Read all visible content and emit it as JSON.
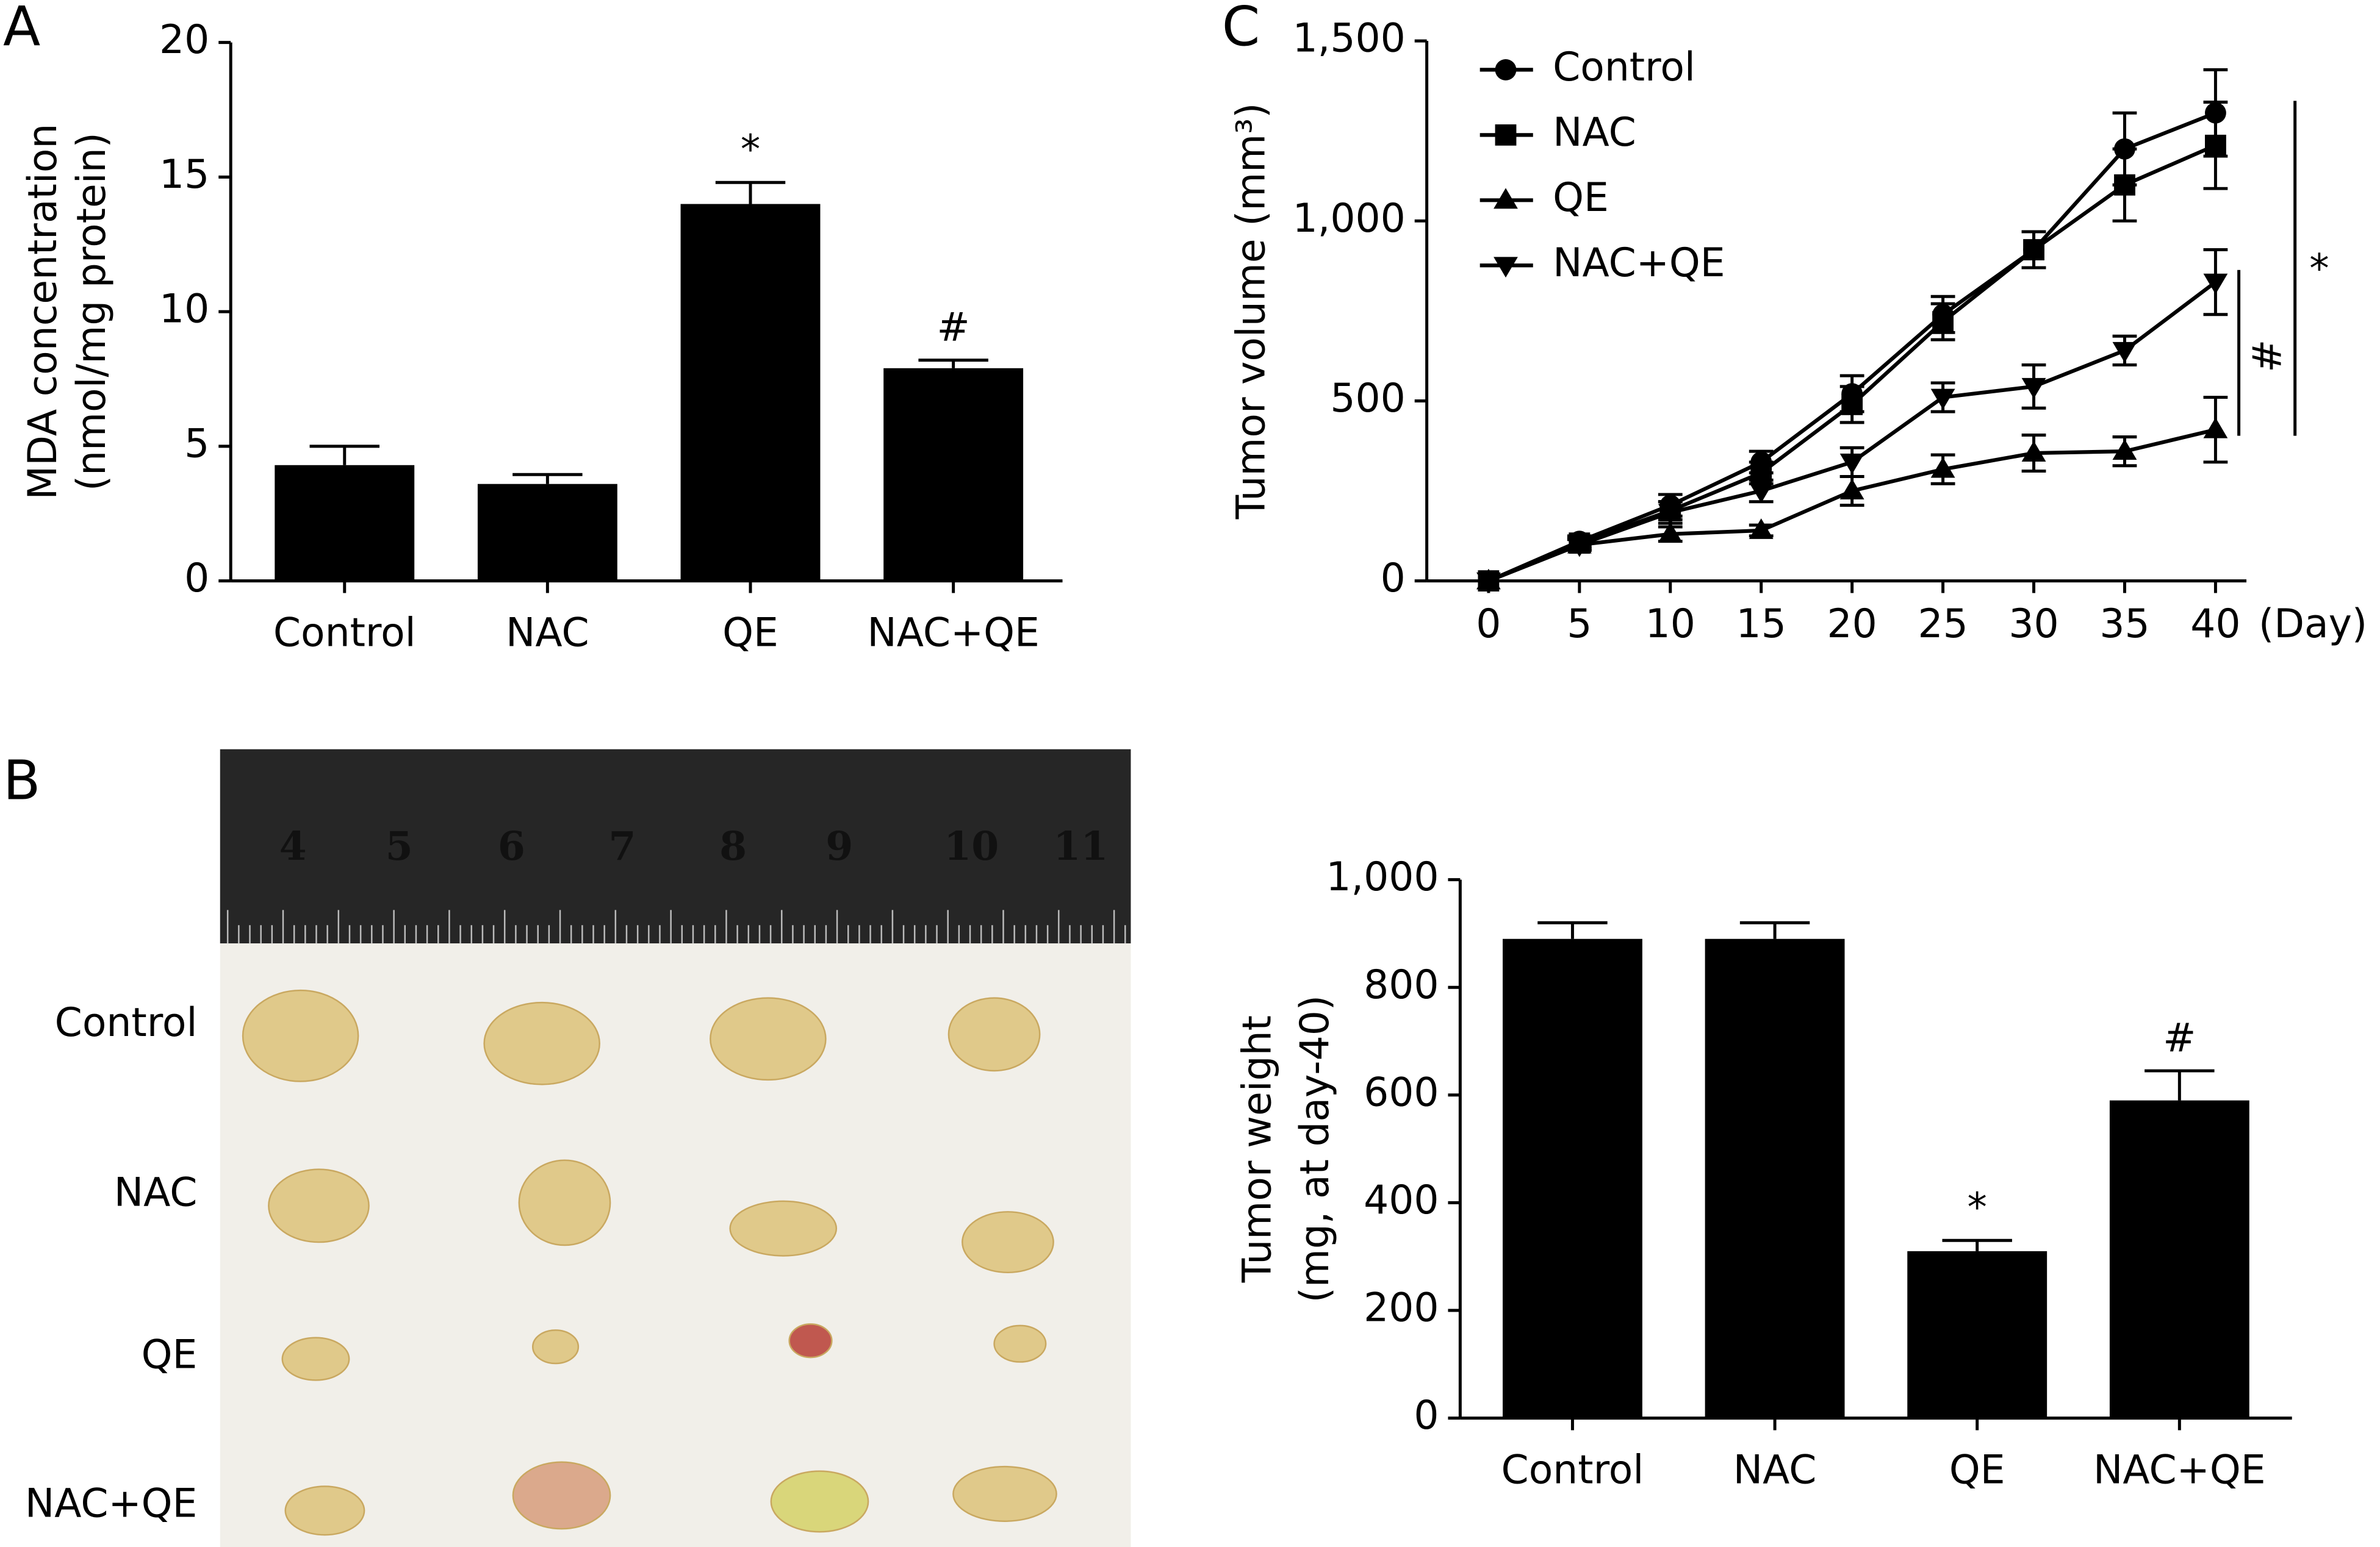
{
  "panel_labels": [
    "A",
    "B",
    "C"
  ],
  "photo": {
    "ruler_numbers": [
      "4",
      "5",
      "6",
      "7",
      "8",
      "9",
      "10",
      "11"
    ],
    "row_labels": [
      "Control",
      "NAC",
      "QE",
      "NAC+QE"
    ]
  },
  "chart_data": [
    {
      "type": "bar",
      "ylabel": [
        "MDA concentration",
        "(nmol/mg protein)"
      ],
      "categories": [
        "Control",
        "NAC",
        "QE",
        "NAC+QE"
      ],
      "values": [
        4.3,
        3.6,
        14.0,
        7.9
      ],
      "errors": [
        0.7,
        0.35,
        0.8,
        0.3
      ],
      "annotations": [
        null,
        null,
        "*",
        "#"
      ],
      "color": "#000000",
      "ylim": [
        0,
        20
      ],
      "yticks": [
        0,
        5,
        10,
        15,
        20
      ]
    },
    {
      "type": "line",
      "ylabel": "Tumor volume (mm³)",
      "xlabel": "(Day)",
      "x": [
        0,
        5,
        10,
        15,
        20,
        25,
        30,
        35,
        40
      ],
      "series": [
        {
          "name": "Control",
          "color": "#000000",
          "marker": "circle",
          "values": [
            0,
            110,
            210,
            330,
            520,
            740,
            920,
            1200,
            1300
          ],
          "errors": [
            0,
            15,
            30,
            30,
            50,
            50,
            50,
            100,
            120
          ]
        },
        {
          "name": "NAC",
          "color": "#000000",
          "marker": "square",
          "values": [
            0,
            105,
            195,
            300,
            490,
            720,
            920,
            1100,
            1210
          ],
          "errors": [
            0,
            15,
            25,
            30,
            50,
            50,
            50,
            100,
            120
          ]
        },
        {
          "name": "QE",
          "color": "#000000",
          "marker": "triangle-up",
          "values": [
            0,
            100,
            130,
            140,
            250,
            310,
            355,
            360,
            420
          ],
          "errors": [
            0,
            15,
            20,
            15,
            40,
            40,
            50,
            40,
            90
          ]
        },
        {
          "name": "NAC+QE",
          "color": "#000000",
          "marker": "triangle-down",
          "values": [
            0,
            100,
            190,
            250,
            330,
            510,
            540,
            640,
            830
          ],
          "errors": [
            0,
            15,
            30,
            30,
            40,
            40,
            60,
            40,
            90
          ]
        }
      ],
      "annotations": [
        {
          "text": "*",
          "series": [
            0,
            2
          ]
        },
        {
          "text": "#",
          "series": [
            3,
            2
          ]
        }
      ],
      "legend": "upper left",
      "xlim": [
        -3.4,
        41.7
      ],
      "xticks": [
        0,
        5,
        10,
        15,
        20,
        25,
        30,
        35,
        40
      ],
      "ylim": [
        0,
        1500
      ],
      "yticks": [
        0,
        500,
        {
          "value": 1000,
          "label": "1,000"
        },
        {
          "value": 1500,
          "label": "1,500"
        }
      ]
    },
    {
      "type": "bar",
      "ylabel": [
        "Tumor weight",
        "(mg, at day-40)"
      ],
      "categories": [
        "Control",
        "NAC",
        "QE",
        "NAC+QE"
      ],
      "values": [
        890,
        890,
        310,
        590
      ],
      "errors": [
        30,
        30,
        20,
        55
      ],
      "annotations": [
        null,
        null,
        "*",
        "#"
      ],
      "color": "#000000",
      "ylim": [
        0,
        1000
      ],
      "yticks": [
        0,
        200,
        400,
        600,
        800,
        {
          "value": 1000,
          "label": "1,000"
        }
      ]
    }
  ]
}
